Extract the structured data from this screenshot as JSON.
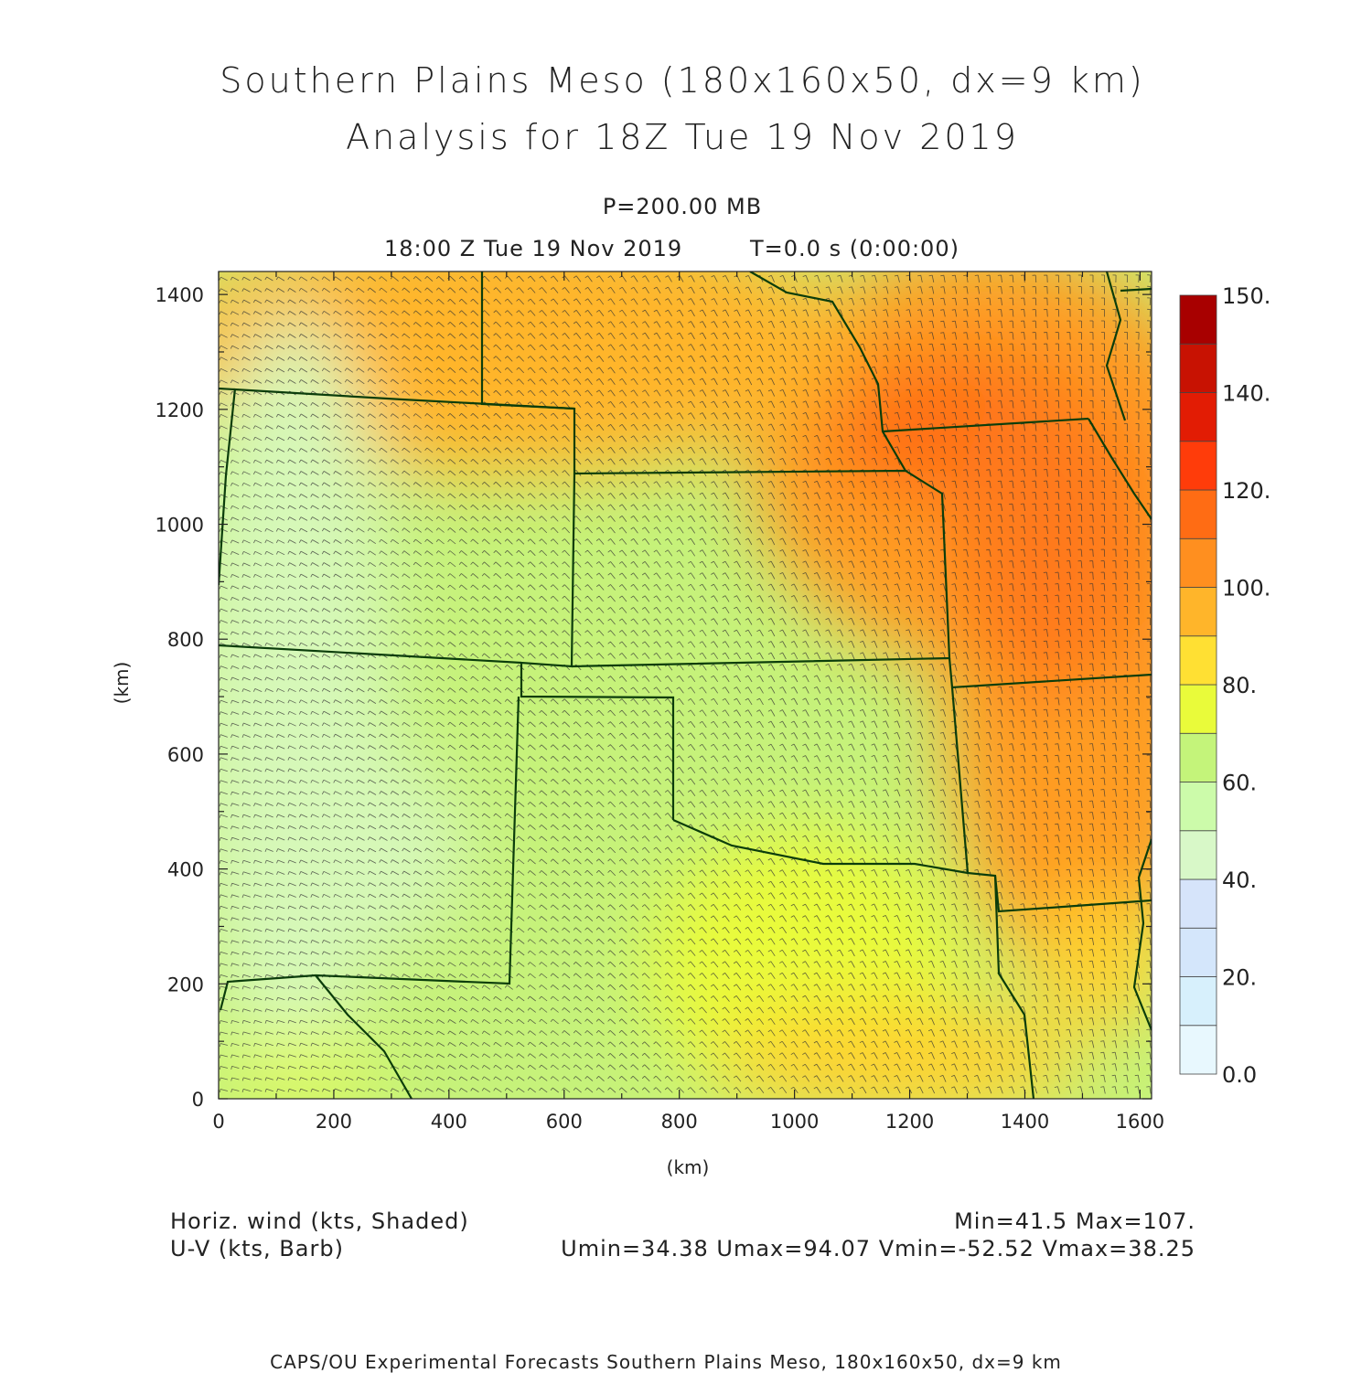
{
  "title_line1": "Southern Plains Meso (180x160x50, dx=9 km)",
  "title_line2": "Analysis for 18Z Tue 19 Nov 2019",
  "level": "P=200.00 MB",
  "valid_time": "18:00 Z Tue 19 Nov 2019",
  "elapsed": "T=0.0 s (0:00:00)",
  "x_axis": {
    "label": "(km)",
    "ticks": [
      "0",
      "200",
      "400",
      "600",
      "800",
      "1000",
      "1200",
      "1400",
      "1600"
    ],
    "range": [
      0,
      1620
    ]
  },
  "y_axis": {
    "label": "(km)",
    "ticks": [
      "0",
      "200",
      "400",
      "600",
      "800",
      "1000",
      "1200",
      "1400"
    ],
    "range": [
      0,
      1440
    ]
  },
  "colorbar": {
    "labels": [
      "0.0",
      "20.",
      "40.",
      "60.",
      "80.",
      "100.",
      "120.",
      "140.",
      "150."
    ],
    "colors": [
      "#e8f8fe",
      "#d7f0fc",
      "#d4e6fb",
      "#d6e4fa",
      "#d8f8c8",
      "#ccfbaa",
      "#c4f47a",
      "#e9fb3a",
      "#ffe033",
      "#ffb52a",
      "#ff8f1f",
      "#ff6c14",
      "#ff3c0a",
      "#e21c04",
      "#c81202",
      "#a80000"
    ]
  },
  "field": {
    "name": "Horiz. wind (kts, Shaded)",
    "vector": "U-V (kts, Barb)",
    "stats_line1": "Min=41.5  Max=107.",
    "stats_line2": "Umin=34.38  Umax=94.07  Vmin=-52.52  Vmax=38.25"
  },
  "footer": "CAPS/OU Experimental Forecasts   Southern Plains Meso, 180x160x50, dx=9 km",
  "colors": {
    "border": "#0b3d0b",
    "barb": "#333333"
  }
}
